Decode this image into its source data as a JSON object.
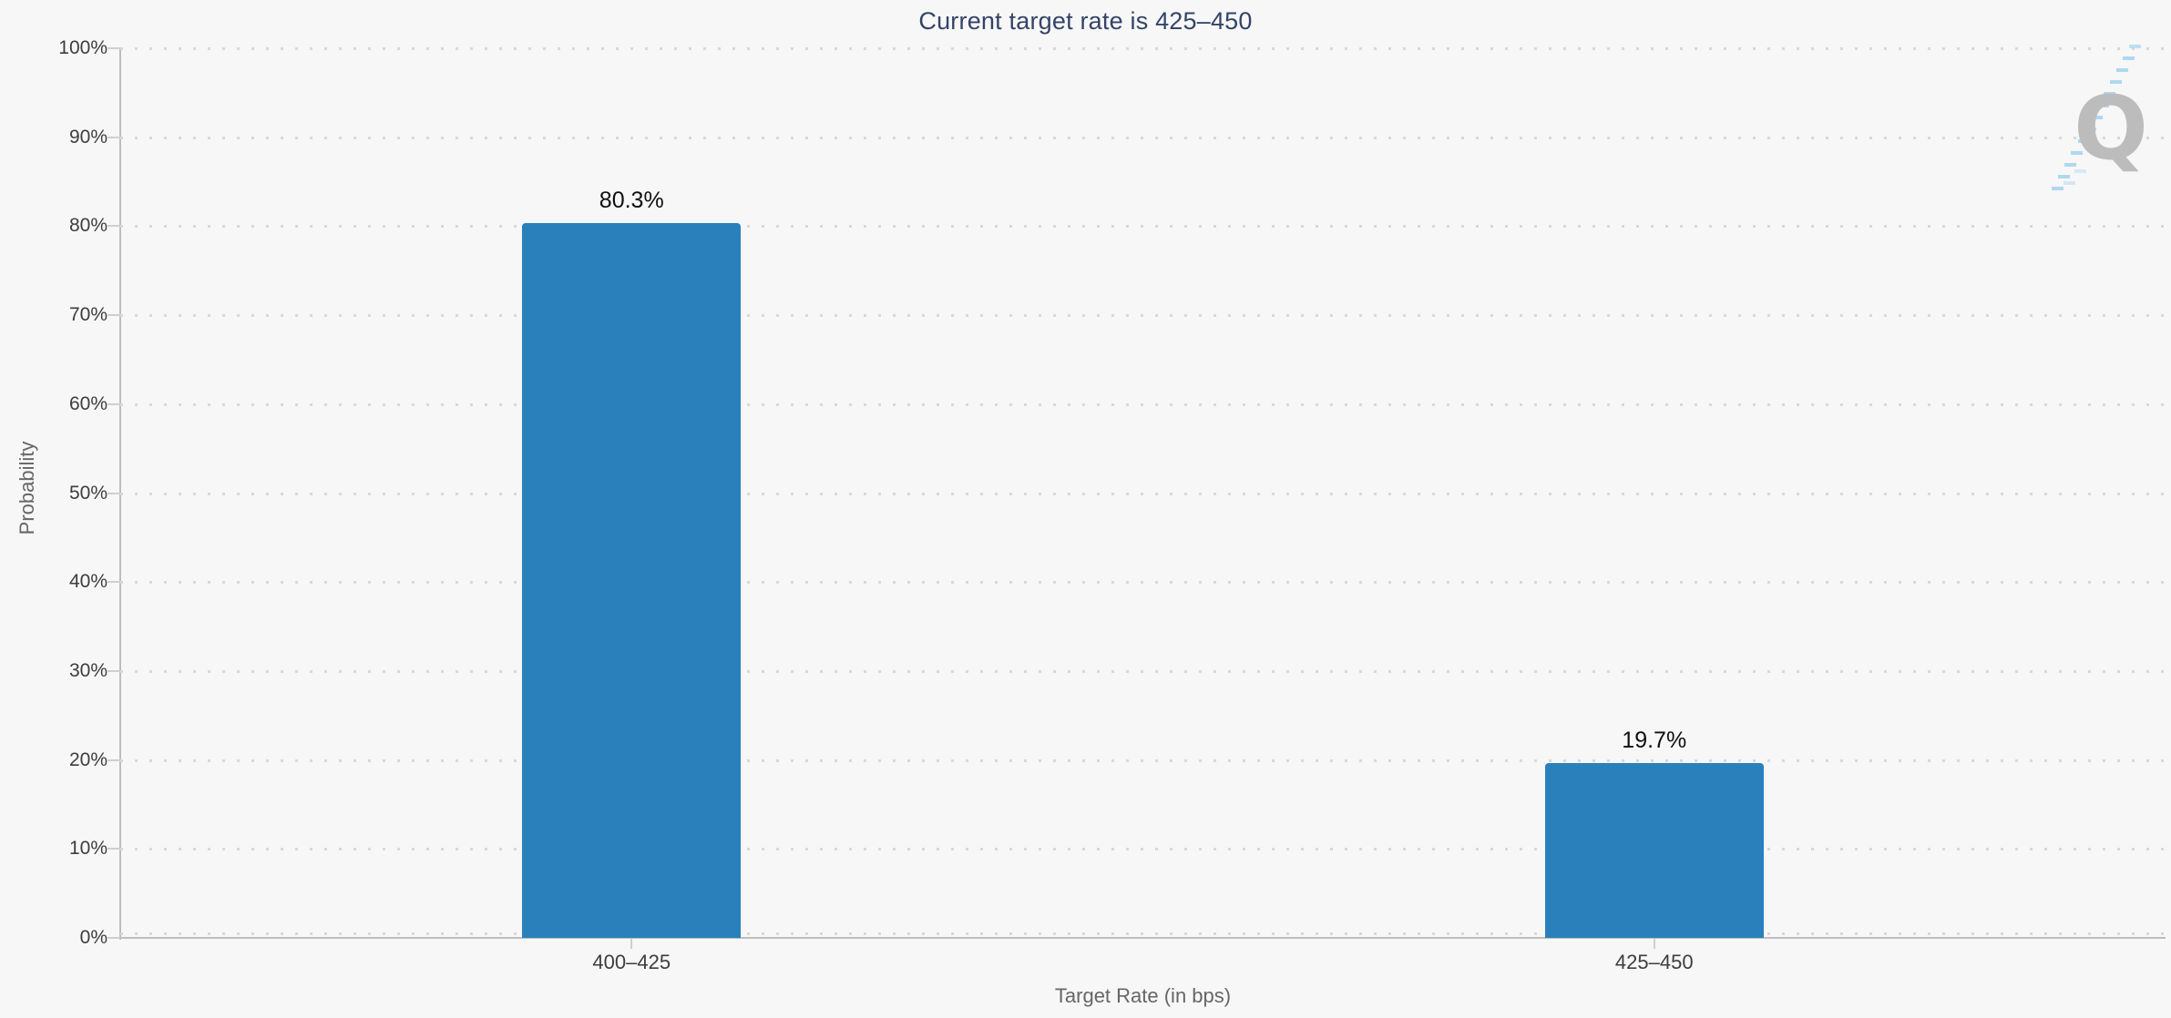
{
  "title": "Current target rate is 425–450",
  "chart_data": {
    "type": "bar",
    "title": "Current target rate is 425–450",
    "categories": [
      "400–425",
      "425–450"
    ],
    "values": [
      80.3,
      19.7
    ],
    "value_labels": [
      "80.3%",
      "19.7%"
    ],
    "xlabel": "Target Rate (in bps)",
    "ylabel": "Probability",
    "ylim": [
      0,
      100
    ],
    "ytick_step": 10,
    "ytick_labels": [
      "0%",
      "10%",
      "20%",
      "30%",
      "40%",
      "50%",
      "60%",
      "70%",
      "80%",
      "90%",
      "100%"
    ],
    "grid": "dotted-horizontal",
    "legend_position": "none"
  },
  "watermark": {
    "letter": "Q"
  },
  "colors": {
    "background": "#f7f7f7",
    "bar": "#2a80ba",
    "title": "#344467",
    "tick_label": "#3d3d3d",
    "axis_title": "#666666",
    "axis_line": "#bdbdbd",
    "grid_dot": "#d8d8d8",
    "value_label": "#0f0f0f",
    "watermark_q": "#bcbcbc",
    "watermark_dash": "#a5d4ef"
  }
}
